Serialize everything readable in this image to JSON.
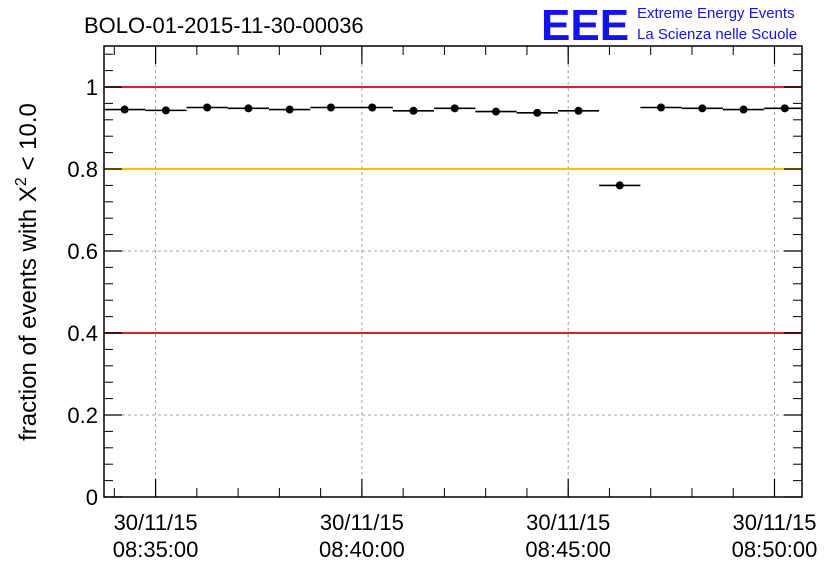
{
  "header": {
    "title": "BOLO-01-2015-11-30-00036",
    "logo": {
      "mark": "EEE",
      "line1": "Extreme Energy Events",
      "line2": "La Scienza nelle Scuole",
      "color": "#1414e6"
    }
  },
  "colors": {
    "red_threshold": "#e02020",
    "yellow_threshold": "#ffc000",
    "grid": "#a0a0a0",
    "marker": "#000000"
  },
  "chart_data": {
    "type": "scatter",
    "title": "BOLO-01-2015-11-30-00036",
    "ylabel": "fraction of events with χ² < 10.0",
    "ylabel_parts": {
      "pre": "fraction of events with X",
      "sup": "2",
      "post": " < 10.0"
    },
    "xlabel": "",
    "ylim": [
      0,
      1.1
    ],
    "x_tick_labels": [
      {
        "date": "30/11/15",
        "time": "08:35:00"
      },
      {
        "date": "30/11/15",
        "time": "08:40:00"
      },
      {
        "date": "30/11/15",
        "time": "08:45:00"
      },
      {
        "date": "30/11/15",
        "time": "08:50:00"
      }
    ],
    "y_ticks": [
      "0",
      "0.2",
      "0.4",
      "0.6",
      "0.8",
      "1"
    ],
    "y_tick_values": [
      0,
      0.2,
      0.4,
      0.6,
      0.8,
      1.0
    ],
    "grid": true,
    "reference_lines": [
      {
        "y": 1.0,
        "color": "#e02020"
      },
      {
        "y": 0.8,
        "color": "#ffc000"
      },
      {
        "y": 0.4,
        "color": "#e02020"
      }
    ],
    "x_range": [
      "08:33:45",
      "08:50:40"
    ],
    "bin_width_seconds": 60,
    "points": [
      {
        "x": "08:34:15",
        "y": 0.945
      },
      {
        "x": "08:35:15",
        "y": 0.943
      },
      {
        "x": "08:36:15",
        "y": 0.95
      },
      {
        "x": "08:37:15",
        "y": 0.948
      },
      {
        "x": "08:38:15",
        "y": 0.945
      },
      {
        "x": "08:39:15",
        "y": 0.95
      },
      {
        "x": "08:40:15",
        "y": 0.95
      },
      {
        "x": "08:41:15",
        "y": 0.942
      },
      {
        "x": "08:42:15",
        "y": 0.948
      },
      {
        "x": "08:43:15",
        "y": 0.94
      },
      {
        "x": "08:44:15",
        "y": 0.937
      },
      {
        "x": "08:45:15",
        "y": 0.942
      },
      {
        "x": "08:46:15",
        "y": 0.76
      },
      {
        "x": "08:47:15",
        "y": 0.95
      },
      {
        "x": "08:48:15",
        "y": 0.948
      },
      {
        "x": "08:49:15",
        "y": 0.945
      },
      {
        "x": "08:50:15",
        "y": 0.948
      }
    ]
  }
}
